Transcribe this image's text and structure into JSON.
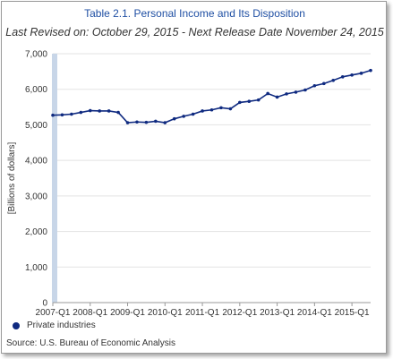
{
  "title": "Table 2.1. Personal Income and Its Disposition",
  "subtitle": "Last Revised on: October 29, 2015 - Next Release Date November 24, 2015",
  "legend_label": "Private industries",
  "source": "Source: U.S. Bureau of Economic  Analysis",
  "colors": {
    "series": "#0f2a80",
    "band": "#c8d6e8",
    "title": "#1f4fa3"
  },
  "chart_data": {
    "type": "line",
    "title": "Table 2.1. Personal Income and Its Disposition",
    "xlabel": "",
    "ylabel": "[Billions of dollars]",
    "ylim": [
      0,
      7000
    ],
    "yticks": [
      0,
      1000,
      2000,
      3000,
      4000,
      5000,
      6000,
      7000
    ],
    "ytick_labels": [
      "0",
      "1,000",
      "2,000",
      "3,000",
      "4,000",
      "5,000",
      "6,000",
      "7,000"
    ],
    "grid": true,
    "legend_position": "bottom-left",
    "x_tick_labels": [
      "2007-Q1",
      "2008-Q1",
      "2009-Q1",
      "2010-Q1",
      "2011-Q1",
      "2012-Q1",
      "2013-Q1",
      "2014-Q1",
      "2015-Q1"
    ],
    "x": [
      "2007-Q1",
      "2007-Q2",
      "2007-Q3",
      "2007-Q4",
      "2008-Q1",
      "2008-Q2",
      "2008-Q3",
      "2008-Q4",
      "2009-Q1",
      "2009-Q2",
      "2009-Q3",
      "2009-Q4",
      "2010-Q1",
      "2010-Q2",
      "2010-Q3",
      "2010-Q4",
      "2011-Q1",
      "2011-Q2",
      "2011-Q3",
      "2011-Q4",
      "2012-Q1",
      "2012-Q2",
      "2012-Q3",
      "2012-Q4",
      "2013-Q1",
      "2013-Q2",
      "2013-Q3",
      "2013-Q4",
      "2014-Q1",
      "2014-Q2",
      "2014-Q3",
      "2014-Q4",
      "2015-Q1",
      "2015-Q2",
      "2015-Q3"
    ],
    "highlight_range": [
      "2007-Q1",
      "2007-Q1"
    ],
    "series": [
      {
        "name": "Private industries",
        "values": [
          5270,
          5280,
          5300,
          5350,
          5400,
          5390,
          5390,
          5350,
          5060,
          5080,
          5070,
          5100,
          5060,
          5170,
          5240,
          5300,
          5390,
          5420,
          5480,
          5450,
          5630,
          5660,
          5700,
          5880,
          5780,
          5870,
          5920,
          5980,
          6100,
          6160,
          6250,
          6350,
          6400,
          6450,
          6530
        ]
      }
    ]
  }
}
